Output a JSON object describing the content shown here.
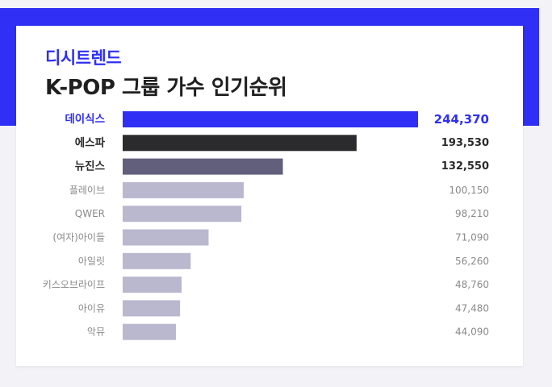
{
  "brand": "디시트렌드",
  "title": "K-POP 그룹 가수 인기순위",
  "colors": {
    "accent": "#2f2ff5",
    "second": "#2b2b2e",
    "third": "#615f7b",
    "rest": "#b9b8cf"
  },
  "chart_data": {
    "type": "bar",
    "orientation": "horizontal",
    "title": "K-POP 그룹 가수 인기순위",
    "categories": [
      "데이식스",
      "에스파",
      "뉴진스",
      "플레이브",
      "QWER",
      "(여자)아이들",
      "아일릿",
      "키스오브라이프",
      "아이유",
      "악뮤"
    ],
    "value_labels": [
      "244,370",
      "193,530",
      "132,550",
      "100,150",
      "98,210",
      "71,090",
      "56,260",
      "48,760",
      "47,480",
      "44,090"
    ],
    "values": [
      244370,
      193530,
      132550,
      100150,
      98210,
      71090,
      56260,
      48760,
      47480,
      44090
    ],
    "xlim": [
      0,
      244370
    ],
    "grid": false,
    "legend": "none"
  }
}
